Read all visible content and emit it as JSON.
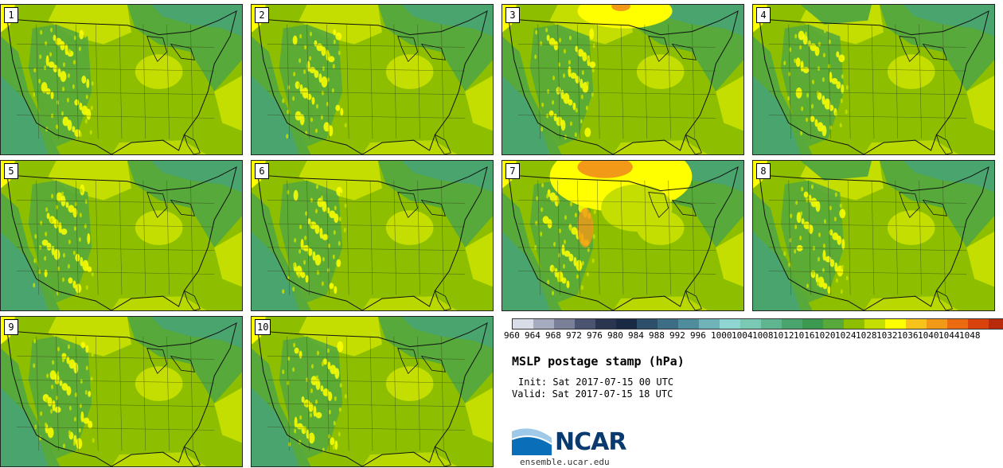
{
  "panels": [
    {
      "label": "1",
      "variant": "base"
    },
    {
      "label": "2",
      "variant": "base"
    },
    {
      "label": "3",
      "variant": "high-north"
    },
    {
      "label": "4",
      "variant": "low-north"
    },
    {
      "label": "5",
      "variant": "base"
    },
    {
      "label": "6",
      "variant": "base"
    },
    {
      "label": "7",
      "variant": "strong-high"
    },
    {
      "label": "8",
      "variant": "low-north"
    },
    {
      "label": "9",
      "variant": "base"
    },
    {
      "label": "10",
      "variant": "base"
    }
  ],
  "colorbar": {
    "colors": [
      "#d8dde8",
      "#a6abc0",
      "#7a8098",
      "#4a5470",
      "#2a3550",
      "#1a2a45",
      "#2e4f6a",
      "#3e6e85",
      "#4f8c9c",
      "#6fb3b8",
      "#8fd6d2",
      "#7ac9b5",
      "#5eb58f",
      "#4aa46e",
      "#3b9a4f",
      "#56a93a",
      "#8dbf00",
      "#c3de00",
      "#ffff00",
      "#f7c21a",
      "#f29a18",
      "#ec6a10",
      "#d9420c",
      "#b82a0a",
      "#8a1a08",
      "#5a1205"
    ],
    "labels": [
      "960",
      "964",
      "968",
      "972",
      "976",
      "980",
      "984",
      "988",
      "992",
      "996",
      "1000",
      "1004",
      "1008",
      "1012",
      "1016",
      "1020",
      "1024",
      "1028",
      "1032",
      "1036",
      "1040",
      "1044",
      "1048"
    ]
  },
  "title": "MSLP postage stamp (hPa)",
  "init": "Init: Sat 2017-07-15 00 UTC",
  "valid": "Valid: Sat 2017-07-15 18 UTC",
  "logo": {
    "text": "NCAR",
    "site": "ensemble.ucar.edu"
  },
  "colors": {
    "dark_green": "#4aa46e",
    "mid_green": "#56a93a",
    "base": "#8dbf00",
    "light": "#c3de00",
    "yellow": "#ffff00",
    "orange": "#f29a18"
  }
}
